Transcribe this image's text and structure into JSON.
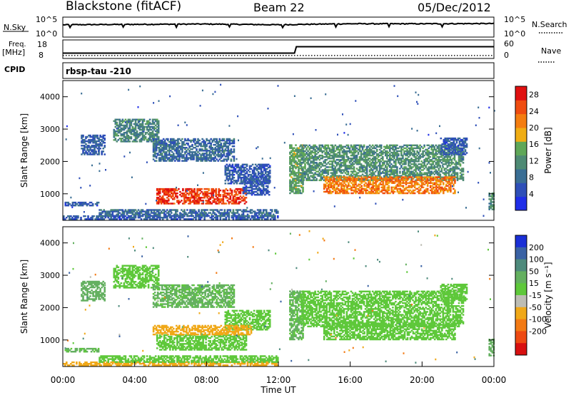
{
  "header": {
    "station": "Blackstone (fitACF)",
    "beam": "Beam 22",
    "date": "05/Dec/2012"
  },
  "panels": {
    "nsky": {
      "left_label": "N.Sky",
      "right_label": "N.Search",
      "tick_top": "10^5",
      "tick_bottom": "10^0"
    },
    "freq": {
      "left_label_1": "Freq.",
      "left_label_2": "[MHz]",
      "right_label": "Nave",
      "left_ticks": [
        "18",
        "8"
      ],
      "right_ticks": [
        "60",
        "0"
      ]
    },
    "cpid": {
      "label": "CPID",
      "value": "rbsp-tau -210"
    }
  },
  "colors": {
    "power_scale": [
      "#1f2ee8",
      "#2e4fb8",
      "#3a6e94",
      "#4e8a74",
      "#5fa758",
      "#f0ad14",
      "#f47d10",
      "#ef4c10",
      "#e01010"
    ],
    "velocity_scale": [
      "#1a2fd6",
      "#3a62a4",
      "#4e8a7c",
      "#64b060",
      "#5ec83a",
      "#bdbdb4",
      "#f0a818",
      "#f37a14",
      "#ee4a12",
      "#d81010"
    ],
    "frame": "#000000"
  },
  "chart_data": [
    {
      "type": "line",
      "title": "N.Sky / N.Search",
      "y_scale": "log",
      "ylim": [
        1,
        100000
      ],
      "x": [
        0,
        4,
        8,
        12,
        16,
        20,
        24
      ],
      "series": [
        {
          "name": "N.Sky",
          "values": [
            1500,
            2000,
            2500,
            1500,
            3000,
            3000,
            3500
          ]
        }
      ]
    },
    {
      "type": "line",
      "title": "Freq. [MHz] / Nave",
      "ylim": [
        8,
        18
      ],
      "x": [
        0,
        12.9,
        13.0,
        24
      ],
      "series": [
        {
          "name": "Freq.",
          "values": [
            10.5,
            10.5,
            14.6,
            14.6
          ]
        },
        {
          "name": "Nave",
          "values": [
            9,
            9,
            9,
            9
          ]
        }
      ]
    },
    {
      "type": "heatmap",
      "quantity": "Power",
      "xlabel": "",
      "ylabel": "Slant Range [km]",
      "xlim": [
        0,
        24
      ],
      "ylim": [
        180,
        4500
      ],
      "yticks": [
        1000,
        2000,
        3000,
        4000
      ],
      "colorbar": {
        "label": "Power [dB]",
        "ticks": [
          4,
          8,
          12,
          16,
          20,
          24,
          28
        ],
        "range": [
          0,
          30
        ]
      },
      "echo_regions": [
        {
          "t0": 0.0,
          "t1": 12.0,
          "r0": 200,
          "r1": 300,
          "value": 6
        },
        {
          "t0": 0.1,
          "t1": 2.0,
          "r0": 620,
          "r1": 720,
          "value": 6
        },
        {
          "t0": 1.0,
          "t1": 2.3,
          "r0": 2200,
          "r1": 2800,
          "value": 7
        },
        {
          "t0": 2.8,
          "t1": 5.3,
          "r0": 2600,
          "r1": 3300,
          "value": 11
        },
        {
          "t0": 5.0,
          "t1": 9.5,
          "r0": 2000,
          "r1": 2700,
          "value": 8
        },
        {
          "t0": 9.0,
          "t1": 11.5,
          "r0": 1300,
          "r1": 1900,
          "value": 6
        },
        {
          "t0": 2.0,
          "t1": 12.0,
          "r0": 300,
          "r1": 520,
          "value": 8
        },
        {
          "t0": 5.2,
          "t1": 10.2,
          "r0": 680,
          "r1": 1150,
          "value": 26
        },
        {
          "t0": 10.0,
          "t1": 11.5,
          "r0": 950,
          "r1": 1500,
          "value": 6
        },
        {
          "t0": 12.6,
          "t1": 13.4,
          "r0": 1000,
          "r1": 2500,
          "value": 14
        },
        {
          "t0": 13.2,
          "t1": 22.3,
          "r0": 1400,
          "r1": 2500,
          "value": 12
        },
        {
          "t0": 14.5,
          "t1": 21.8,
          "r0": 1000,
          "r1": 1500,
          "value": 22
        },
        {
          "t0": 21.0,
          "t1": 22.5,
          "r0": 2200,
          "r1": 2700,
          "value": 6
        },
        {
          "t0": 23.7,
          "t1": 24.0,
          "r0": 500,
          "r1": 1000,
          "value": 12
        }
      ]
    },
    {
      "type": "heatmap",
      "quantity": "Velocity",
      "xlabel": "Time UT",
      "ylabel": "Slant Range [km]",
      "xlim": [
        0,
        24
      ],
      "ylim": [
        180,
        4500
      ],
      "yticks": [
        1000,
        2000,
        3000,
        4000
      ],
      "xticks": [
        "00:00",
        "04:00",
        "08:00",
        "12:00",
        "16:00",
        "20:00",
        "00:00"
      ],
      "colorbar": {
        "label": "Velocity [m s⁻¹]",
        "ticks": [
          200,
          100,
          50,
          15,
          -15,
          -50,
          -100,
          -200
        ]
      },
      "echo_regions": [
        {
          "t0": 0.0,
          "t1": 12.0,
          "r0": 200,
          "r1": 300,
          "value": -60
        },
        {
          "t0": 0.1,
          "t1": 2.0,
          "r0": 620,
          "r1": 720,
          "value": 20
        },
        {
          "t0": 1.0,
          "t1": 2.3,
          "r0": 2200,
          "r1": 2800,
          "value": 30
        },
        {
          "t0": 2.8,
          "t1": 5.3,
          "r0": 2600,
          "r1": 3300,
          "value": 0
        },
        {
          "t0": 5.0,
          "t1": 9.5,
          "r0": 2000,
          "r1": 2700,
          "value": 20
        },
        {
          "t0": 9.0,
          "t1": 11.5,
          "r0": 1300,
          "r1": 1900,
          "value": 0
        },
        {
          "t0": 2.0,
          "t1": 12.0,
          "r0": 300,
          "r1": 520,
          "value": 0
        },
        {
          "t0": 5.2,
          "t1": 10.2,
          "r0": 680,
          "r1": 1150,
          "value": 0
        },
        {
          "t0": 5.0,
          "t1": 10.5,
          "r0": 1150,
          "r1": 1450,
          "value": -60
        },
        {
          "t0": 12.6,
          "t1": 13.4,
          "r0": 1000,
          "r1": 2500,
          "value": 20
        },
        {
          "t0": 13.2,
          "t1": 22.3,
          "r0": 1400,
          "r1": 2500,
          "value": 0
        },
        {
          "t0": 14.5,
          "t1": 21.8,
          "r0": 1000,
          "r1": 1500,
          "value": 0
        },
        {
          "t0": 21.0,
          "t1": 22.5,
          "r0": 2200,
          "r1": 2700,
          "value": 0
        },
        {
          "t0": 23.7,
          "t1": 24.0,
          "r0": 500,
          "r1": 1000,
          "value": 30
        }
      ]
    }
  ]
}
